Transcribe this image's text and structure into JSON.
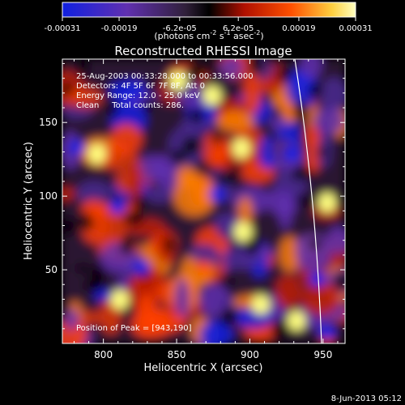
{
  "colorbar": {
    "ticks": [
      "-0.00031",
      "-0.00019",
      "-6.2e-05",
      "6.2e-05",
      "0.00019",
      "0.00031"
    ],
    "tick_values": [
      -0.00031,
      -0.00019,
      -6.2e-05,
      6.2e-05,
      0.00019,
      0.00031
    ],
    "range": [
      -0.00031,
      0.00031
    ],
    "units_prefix": "(photons cm",
    "units_exp1": "-2",
    "units_mid": " s",
    "units_exp2": "-1",
    "units_mid2": " asec",
    "units_exp3": "-2",
    "units_suffix": ")"
  },
  "plot": {
    "title": "Reconstructed RHESSI Image",
    "xlabel": "Heliocentric X (arcsec)",
    "ylabel": "Heliocentric Y (arcsec)",
    "xlim": [
      772,
      965
    ],
    "ylim": [
      0,
      193
    ],
    "xticks": [
      800,
      850,
      900,
      950
    ],
    "yticks": [
      50,
      100,
      150
    ],
    "xtick_labels": [
      "800",
      "850",
      "900",
      "950"
    ],
    "ytick_labels": [
      "50",
      "100",
      "150"
    ]
  },
  "info": {
    "line1": "25-Aug-2003 00:33:28.000 to 00:33:56.000",
    "line2": "Detectors: 4F 5F 6F 7F 8F, Att 0",
    "line3": "Energy Range: 12.0 - 25.0 keV",
    "line4": "Clean     Total counts: 286.",
    "peak": "Position of Peak = [943,190]"
  },
  "footer": {
    "date": "8-Jun-2013 05:12"
  },
  "colors": {
    "positive_peak": "#ffff80",
    "positive": "#ff4000",
    "negative": "#6030b0",
    "negative_peak": "#1020e0",
    "background": "#000000"
  }
}
